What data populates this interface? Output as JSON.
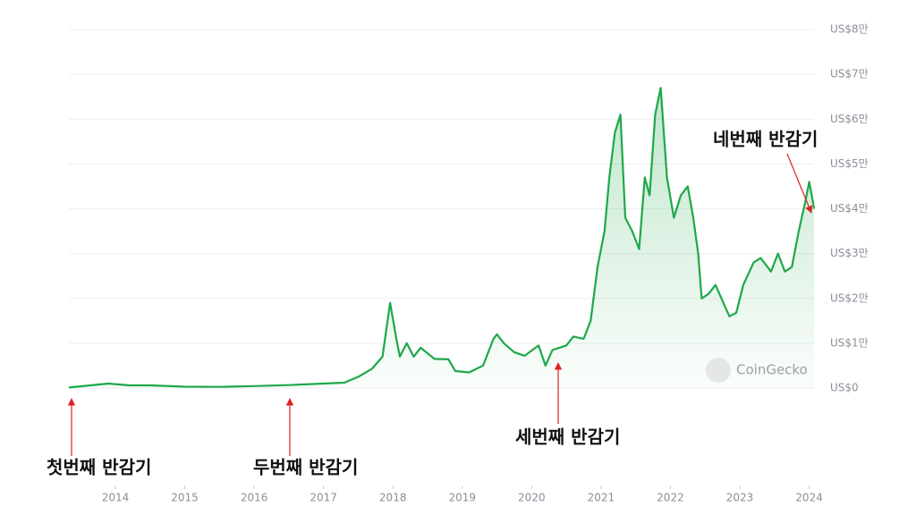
{
  "chart_data": {
    "type": "line",
    "color": "#1ea84a",
    "x": [
      2013.33,
      2013.9,
      2014.2,
      2014.5,
      2015.0,
      2015.5,
      2016.0,
      2016.5,
      2017.0,
      2017.3,
      2017.5,
      2017.7,
      2017.85,
      2017.96,
      2018.05,
      2018.1,
      2018.2,
      2018.3,
      2018.4,
      2018.6,
      2018.8,
      2018.9,
      2019.1,
      2019.3,
      2019.45,
      2019.5,
      2019.6,
      2019.75,
      2019.9,
      2020.1,
      2020.2,
      2020.3,
      2020.5,
      2020.6,
      2020.75,
      2020.85,
      2020.95,
      2021.05,
      2021.12,
      2021.2,
      2021.28,
      2021.35,
      2021.45,
      2021.55,
      2021.63,
      2021.7,
      2021.78,
      2021.86,
      2021.95,
      2022.05,
      2022.15,
      2022.25,
      2022.33,
      2022.4,
      2022.45,
      2022.55,
      2022.65,
      2022.75,
      2022.85,
      2022.95,
      2023.05,
      2023.2,
      2023.3,
      2023.45,
      2023.55,
      2023.65,
      2023.75,
      2023.85,
      2023.95,
      2024.0,
      2024.05,
      2024.07
    ],
    "values": [
      120,
      1000,
      600,
      600,
      300,
      250,
      430,
      650,
      1000,
      1200,
      2500,
      4300,
      7000,
      19000,
      11000,
      7000,
      10000,
      7000,
      9000,
      6500,
      6400,
      3800,
      3500,
      5000,
      11000,
      12000,
      10000,
      8000,
      7200,
      9500,
      5000,
      8500,
      9500,
      11500,
      11000,
      15000,
      27000,
      35000,
      47000,
      57000,
      61000,
      38000,
      35000,
      31000,
      47000,
      43000,
      61000,
      67000,
      47000,
      38000,
      43000,
      45000,
      38000,
      30000,
      20000,
      21000,
      23000,
      19500,
      16000,
      16800,
      23000,
      28000,
      29000,
      26000,
      30000,
      26000,
      27000,
      35000,
      42000,
      46000,
      42000,
      40000
    ],
    "xlim": [
      2013.33,
      2024.07
    ],
    "xticks": [
      2014,
      2015,
      2016,
      2017,
      2018,
      2019,
      2020,
      2021,
      2022,
      2023,
      2024
    ],
    "ylim": [
      0,
      80000
    ],
    "yticks": [
      {
        "value": 0,
        "label": "US$0"
      },
      {
        "value": 10000,
        "label": "US$1만"
      },
      {
        "value": 20000,
        "label": "US$2만"
      },
      {
        "value": 30000,
        "label": "US$3만"
      },
      {
        "value": 40000,
        "label": "US$4만"
      },
      {
        "value": 50000,
        "label": "US$5만"
      },
      {
        "value": 60000,
        "label": "US$6만"
      },
      {
        "value": 70000,
        "label": "US$7만"
      },
      {
        "value": 80000,
        "label": "US$8만"
      }
    ],
    "grid": true,
    "annotations": [
      "첫번째 반감기",
      "두번째 반감기",
      "세번째 반감기",
      "네번째 반감기"
    ],
    "watermark": "CoinGecko"
  }
}
